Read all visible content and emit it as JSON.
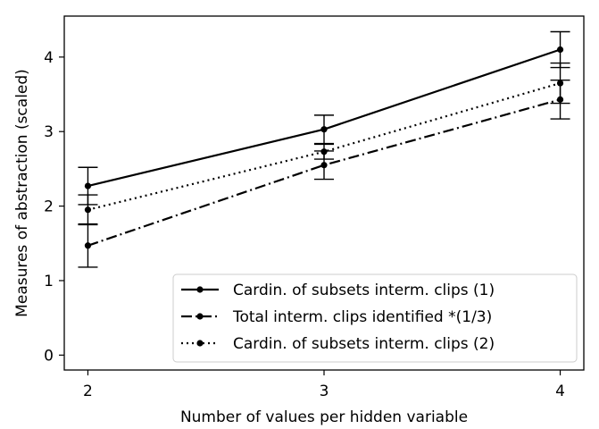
{
  "chart_data": {
    "type": "line",
    "title": "",
    "xlabel": "Number of values per hidden variable",
    "ylabel": "Measures of abstraction (scaled)",
    "x": [
      2,
      3,
      4
    ],
    "xlim": [
      1.9,
      4.1
    ],
    "ylim": [
      -0.2,
      4.55
    ],
    "xticks": [
      "2",
      "3",
      "4"
    ],
    "yticks": [
      "0",
      "1",
      "2",
      "3",
      "4"
    ],
    "grid": false,
    "legend_position": "lower-right",
    "series": [
      {
        "name": "Cardin. of subsets interm. clips (1)",
        "style": "solid",
        "color": "#000000",
        "values": [
          2.27,
          3.03,
          4.1
        ],
        "errors": [
          0.25,
          0.19,
          0.24
        ]
      },
      {
        "name": "Total interm. clips identified *(1/3)",
        "style": "dashdot",
        "color": "#000000",
        "values": [
          1.47,
          2.55,
          3.43
        ],
        "errors": [
          0.29,
          0.19,
          0.26
        ]
      },
      {
        "name": "Cardin. of subsets interm. clips (2)",
        "style": "dotted",
        "color": "#000000",
        "values": [
          1.95,
          2.73,
          3.65
        ],
        "errors": [
          0.2,
          0.1,
          0.27
        ]
      }
    ]
  }
}
